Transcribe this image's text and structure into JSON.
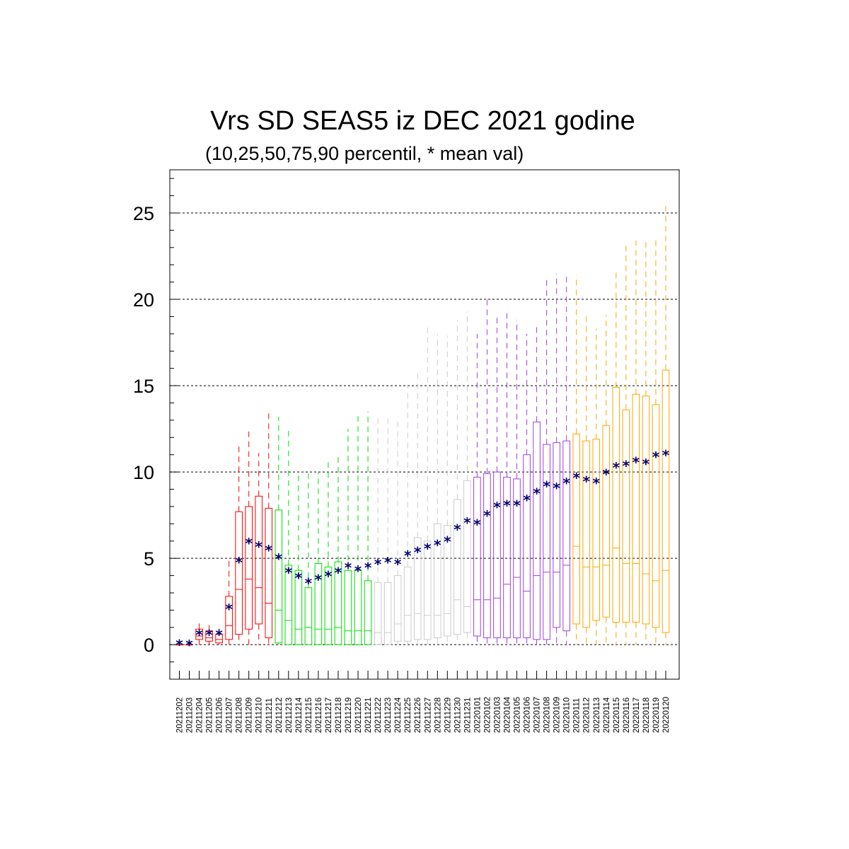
{
  "chart_data": {
    "type": "boxplot",
    "title": "Vrs SD SEAS5 iz DEC 2021 godine",
    "subtitle": "(10,25,50,75,90 percentil, * mean val)",
    "ylim": [
      -2,
      27.5
    ],
    "yticks": [
      0,
      5,
      10,
      15,
      20,
      25
    ],
    "grid": "horizontal dashed at major ticks",
    "mean_marker": "*",
    "categories": [
      "20211202",
      "20211203",
      "20211204",
      "20211205",
      "20211206",
      "20211207",
      "20211208",
      "20211209",
      "20211210",
      "20211211",
      "20211212",
      "20211213",
      "20211214",
      "20211215",
      "20211216",
      "20211217",
      "20211218",
      "20211219",
      "20211220",
      "20211221",
      "20211222",
      "20211223",
      "20211224",
      "20211225",
      "20211226",
      "20211227",
      "20211228",
      "20211229",
      "20211230",
      "20211231",
      "20220101",
      "20220102",
      "20220103",
      "20220104",
      "20220105",
      "20220106",
      "20220107",
      "20220108",
      "20220109",
      "20220110",
      "20220111",
      "20220112",
      "20220113",
      "20220114",
      "20220115",
      "20220116",
      "20220117",
      "20220118",
      "20220119",
      "20220120"
    ],
    "colors": [
      "#ff0000",
      "#ff0000",
      "#ff0000",
      "#ff0000",
      "#ff0000",
      "#ff0000",
      "#ff0000",
      "#ff0000",
      "#ff0000",
      "#ff0000",
      "#00dd00",
      "#00dd00",
      "#00dd00",
      "#00dd00",
      "#00dd00",
      "#00dd00",
      "#00dd00",
      "#00dd00",
      "#00dd00",
      "#00dd00",
      "#cccccc",
      "#cccccc",
      "#cccccc",
      "#cccccc",
      "#cccccc",
      "#cccccc",
      "#cccccc",
      "#cccccc",
      "#cccccc",
      "#cccccc",
      "#a040e0",
      "#a040e0",
      "#a040e0",
      "#a040e0",
      "#a040e0",
      "#a040e0",
      "#a040e0",
      "#a040e0",
      "#a040e0",
      "#a040e0",
      "#ffa500",
      "#ffa500",
      "#ffa500",
      "#ffa500",
      "#ffa500",
      "#ffa500",
      "#ffa500",
      "#ffa500",
      "#ffa500",
      "#ffa500"
    ],
    "p10": [
      0,
      0,
      0,
      0,
      0,
      0,
      0,
      0,
      0,
      0,
      0,
      0,
      0,
      0,
      0,
      0,
      0,
      0,
      0,
      0,
      0,
      0,
      0,
      0,
      0,
      0,
      0,
      0,
      0,
      0,
      0,
      0,
      0,
      0,
      0,
      0,
      0,
      0,
      0,
      0,
      0,
      0,
      0,
      0,
      0,
      0,
      0,
      0,
      0,
      0
    ],
    "p25": [
      0,
      0,
      0.3,
      0.2,
      0.1,
      0.3,
      0.6,
      0.9,
      1.2,
      0.4,
      0.1,
      0,
      0,
      0,
      0,
      0,
      0,
      0,
      0,
      0,
      0,
      0,
      0.2,
      0.2,
      0.3,
      0.3,
      0.4,
      0.5,
      0.6,
      0.7,
      0.5,
      0.4,
      0.4,
      0.4,
      0.4,
      0.4,
      0.3,
      0.3,
      1.0,
      0.8,
      1.2,
      1.0,
      1.4,
      1.6,
      1.3,
      1.3,
      1.3,
      1.2,
      1.0,
      0.7
    ],
    "p50": [
      0,
      0,
      0.5,
      0.4,
      0.3,
      1.1,
      3.2,
      3.8,
      3.3,
      2.4,
      2.0,
      1.4,
      0.9,
      1.0,
      0.9,
      0.9,
      1.0,
      0.8,
      0.8,
      0.8,
      0.7,
      0.7,
      1.2,
      1.7,
      1.8,
      1.7,
      1.7,
      1.8,
      2.6,
      2.2,
      2.6,
      2.6,
      2.7,
      3.5,
      3.9,
      3.1,
      4.0,
      4.2,
      4.2,
      4.6,
      5.7,
      4.5,
      4.5,
      4.6,
      5.6,
      4.7,
      4.7,
      4.1,
      3.7,
      4.3
    ],
    "p75": [
      0,
      0,
      0.9,
      0.8,
      0.6,
      2.8,
      7.7,
      8.0,
      8.6,
      7.9,
      7.8,
      4.6,
      4.3,
      3.3,
      4.7,
      4.5,
      4.8,
      4.3,
      4.3,
      3.7,
      3.6,
      3.6,
      4.0,
      4.5,
      6.2,
      6.0,
      7.0,
      6.9,
      8.4,
      9.5,
      9.7,
      9.9,
      10.0,
      9.7,
      9.6,
      11.0,
      12.9,
      11.6,
      11.7,
      11.8,
      12.2,
      11.8,
      11.9,
      12.7,
      14.9,
      13.6,
      14.5,
      14.4,
      13.9,
      15.9
    ],
    "p90": [
      0,
      0,
      1.3,
      1.3,
      1.1,
      5.1,
      11.7,
      12.4,
      11.1,
      13.6,
      13.2,
      12.4,
      9.8,
      9.9,
      10.0,
      10.8,
      11.0,
      12.5,
      13.4,
      13.5,
      13.3,
      13.3,
      13.2,
      15.0,
      15.7,
      18.5,
      18.0,
      17.9,
      18.8,
      19.3,
      18.0,
      20.2,
      19.1,
      19.2,
      18.8,
      18.0,
      18.5,
      21.2,
      21.5,
      21.5,
      21.4,
      19.1,
      18.3,
      19.1,
      21.6,
      23.3,
      23.4,
      23.3,
      23.5,
      25.5
    ],
    "mean": [
      0.02,
      0.0,
      0.6,
      0.6,
      0.6,
      2.1,
      4.8,
      5.9,
      5.7,
      5.5,
      5.0,
      4.2,
      3.9,
      3.6,
      3.8,
      4.0,
      4.2,
      4.5,
      4.3,
      4.5,
      4.7,
      4.8,
      4.7,
      5.2,
      5.4,
      5.6,
      5.8,
      6.0,
      6.7,
      7.1,
      7.0,
      7.5,
      8.0,
      8.1,
      8.1,
      8.4,
      8.8,
      9.2,
      9.1,
      9.4,
      9.7,
      9.5,
      9.4,
      9.9,
      10.3,
      10.4,
      10.6,
      10.5,
      10.9,
      11.0
    ]
  }
}
